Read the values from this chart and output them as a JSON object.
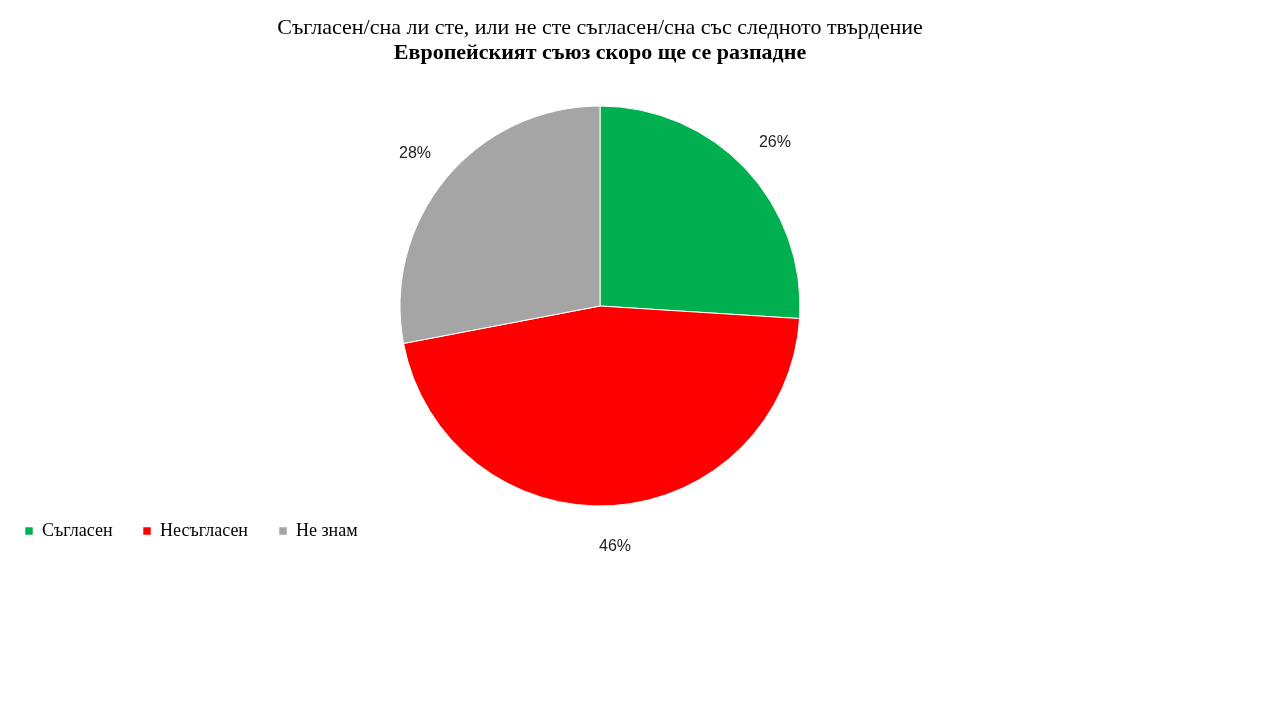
{
  "chart_data": {
    "type": "pie",
    "title": "Съгласен/сна ли сте, или не сте съгласен/сна със следното твърдение",
    "subtitle": "Европейският съюз скоро ще се разпадне",
    "categories": [
      "Съгласен",
      "Несъгласен",
      "Не знам"
    ],
    "values": [
      26,
      46,
      28
    ],
    "colors": [
      "#00b050",
      "#ff0000",
      "#a5a5a5"
    ],
    "value_labels": [
      "26%",
      "46%",
      "28%"
    ],
    "legend": "bottom"
  }
}
